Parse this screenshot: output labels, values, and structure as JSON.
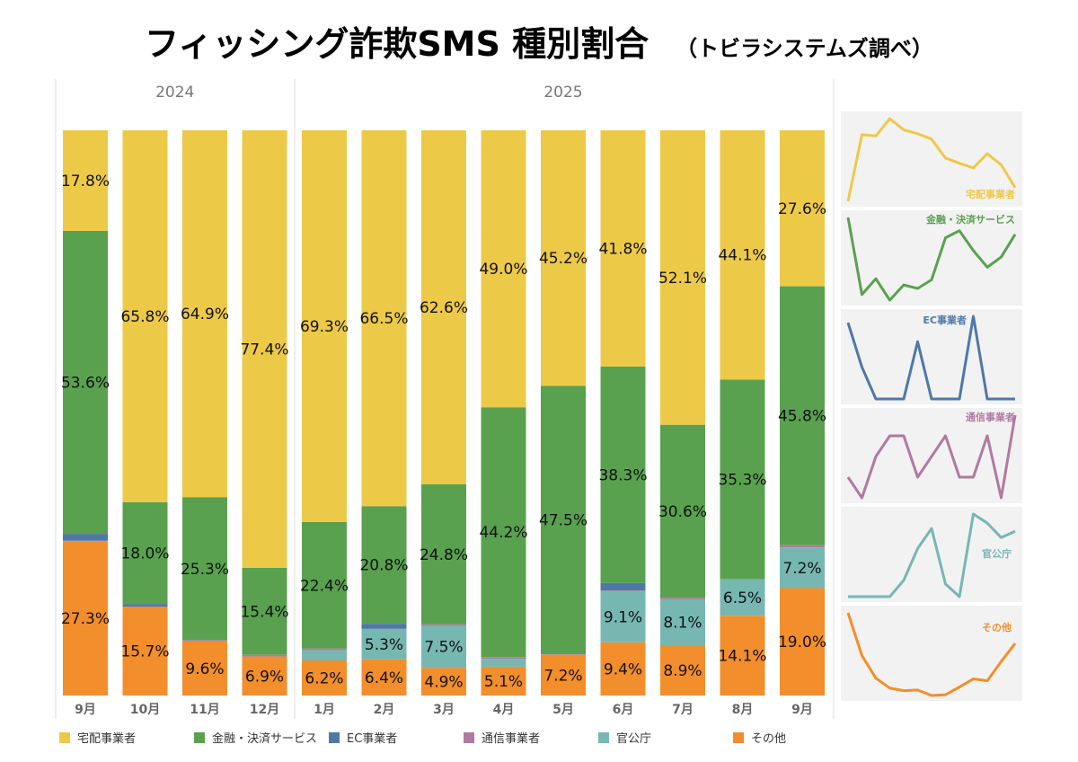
{
  "title": "フィッシング詐欺SMS 種別割合",
  "subtitle": "（トビラシステムズ調べ）",
  "chart_data": {
    "type": "bar",
    "stacked": "100%",
    "years": [
      {
        "label": "2024",
        "months": 4
      },
      {
        "label": "2025",
        "months": 9
      }
    ],
    "categories": [
      "9月",
      "10月",
      "11月",
      "12月",
      "1月",
      "2月",
      "3月",
      "4月",
      "5月",
      "6月",
      "7月",
      "8月",
      "9月"
    ],
    "series": [
      {
        "name": "その他",
        "color": "#F28E2B",
        "values": [
          27.3,
          15.7,
          9.6,
          6.9,
          6.2,
          6.4,
          4.9,
          5.1,
          7.2,
          9.4,
          8.9,
          14.1,
          19.0
        ],
        "labeled": true
      },
      {
        "name": "官公庁",
        "color": "#76B7B2",
        "values": [
          0,
          0,
          0,
          0,
          1.8,
          5.3,
          7.5,
          1.4,
          0,
          9.1,
          8.1,
          6.5,
          7.2
        ],
        "labeled": [
          false,
          false,
          false,
          false,
          false,
          true,
          true,
          false,
          false,
          true,
          true,
          true,
          true
        ]
      },
      {
        "name": "通信事業者",
        "color": "#B07AA1",
        "values": [
          0.1,
          0,
          0.2,
          0.3,
          0.3,
          0.1,
          0.2,
          0.3,
          0.1,
          0.1,
          0.3,
          0,
          0.4
        ],
        "labeled": false
      },
      {
        "name": "EC事業者",
        "color": "#4E79A7",
        "values": [
          1.2,
          0.5,
          0,
          0,
          0,
          0.9,
          0,
          0,
          0,
          1.3,
          0,
          0,
          0
        ],
        "labeled": false
      },
      {
        "name": "金融・決済サービス",
        "color": "#59A14F",
        "values": [
          53.6,
          18.0,
          25.3,
          15.4,
          22.4,
          20.8,
          24.8,
          44.2,
          47.5,
          38.3,
          30.6,
          35.3,
          45.8
        ],
        "labeled": true
      },
      {
        "name": "宅配事業者",
        "color": "#EDC948",
        "values": [
          17.8,
          65.8,
          64.9,
          77.4,
          69.3,
          66.5,
          62.6,
          49.0,
          45.2,
          41.8,
          52.1,
          44.1,
          27.6
        ],
        "labeled": true
      }
    ],
    "legend_order": [
      "宅配事業者",
      "金融・決済サービス",
      "EC事業者",
      "通信事業者",
      "官公庁",
      "その他"
    ],
    "legend_position": "bottom",
    "small_multiples_position": "right"
  }
}
